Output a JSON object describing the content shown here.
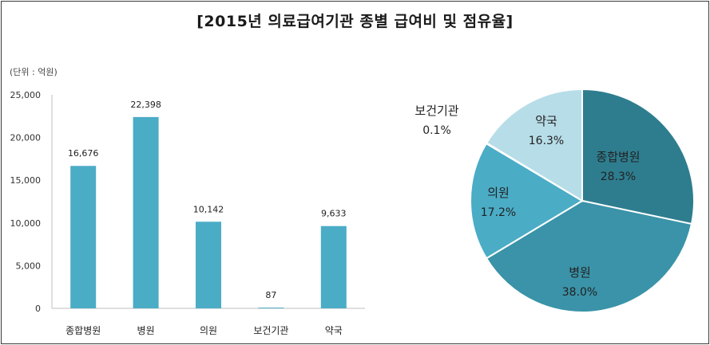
{
  "title": "[2015년 의료급여기관 종별 급여비 및 점유율]",
  "chart_data": [
    {
      "type": "bar",
      "unit_label": "(단위 : 억원)",
      "categories": [
        "종합병원",
        "병원",
        "의원",
        "보건기관",
        "약국"
      ],
      "values": [
        16676,
        22398,
        10142,
        87,
        9633
      ],
      "value_labels": [
        "16,676",
        "22,398",
        "10,142",
        "87",
        "9,633"
      ],
      "ylim": [
        0,
        25000
      ],
      "yticks": [
        0,
        5000,
        10000,
        15000,
        20000,
        25000
      ],
      "ytick_labels": [
        "0",
        "5,000",
        "10,000",
        "15,000",
        "20,000",
        "25,000"
      ],
      "grid": false,
      "bar_color": "#4BACC6"
    },
    {
      "type": "pie",
      "slices": [
        {
          "label": "종합병원",
          "value": 28.3,
          "value_label": "28.3%",
          "color": "#2E7D8F"
        },
        {
          "label": "병원",
          "value": 38.0,
          "value_label": "38.0%",
          "color": "#3A93A8"
        },
        {
          "label": "의원",
          "value": 17.2,
          "value_label": "17.2%",
          "color": "#4BACC6"
        },
        {
          "label": "보건기관",
          "value": 0.1,
          "value_label": "0.1%",
          "color": "#A5D5E2"
        },
        {
          "label": "약국",
          "value": 16.3,
          "value_label": "16.3%",
          "color": "#B7DDE8"
        }
      ]
    }
  ]
}
